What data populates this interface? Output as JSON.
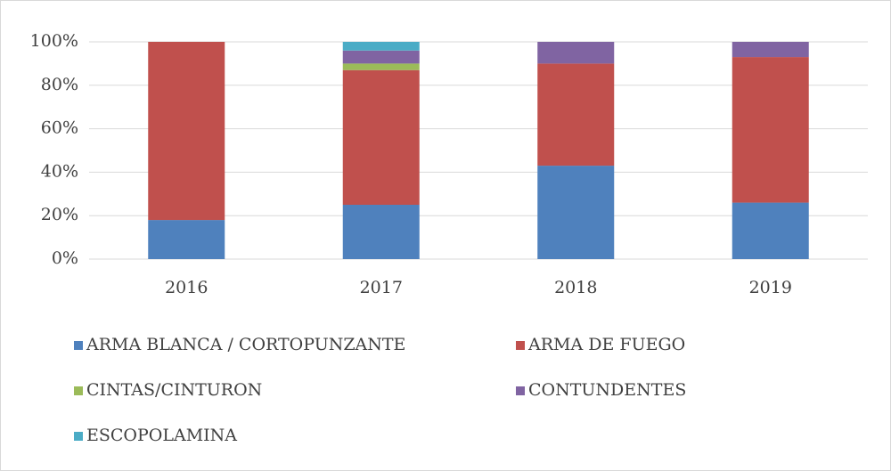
{
  "chart_data": {
    "type": "stacked_bar",
    "categories": [
      "2016",
      "2017",
      "2018",
      "2019"
    ],
    "series": [
      {
        "name": "ARMA BLANCA / CORTOPUNZANTE",
        "color": "#4f81bd",
        "values": [
          18,
          25,
          43,
          26
        ]
      },
      {
        "name": "ARMA DE FUEGO",
        "color": "#c0504d",
        "values": [
          82,
          62,
          47,
          67
        ]
      },
      {
        "name": "CINTAS/CINTURON",
        "color": "#9bbb59",
        "values": [
          0,
          3,
          0,
          0
        ]
      },
      {
        "name": "CONTUNDENTES",
        "color": "#8064a2",
        "values": [
          0,
          6,
          10,
          7
        ]
      },
      {
        "name": "ESCOPOLAMINA",
        "color": "#4bacc6",
        "values": [
          0,
          4,
          0,
          0
        ]
      }
    ],
    "ylim": [
      0,
      100
    ],
    "yticks": [
      {
        "value": 0,
        "label": "0%"
      },
      {
        "value": 20,
        "label": "20%"
      },
      {
        "value": 40,
        "label": "40%"
      },
      {
        "value": 60,
        "label": "60%"
      },
      {
        "value": 80,
        "label": "80%"
      },
      {
        "value": 100,
        "label": "100%"
      }
    ],
    "grid": true,
    "legend": "bottom"
  }
}
